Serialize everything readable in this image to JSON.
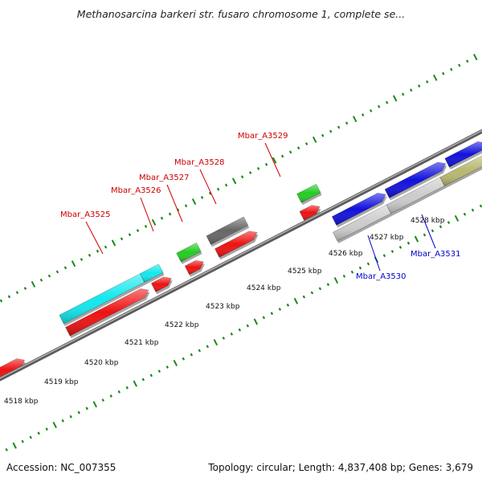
{
  "title": "Methanosarcina barkeri str. fusaro chromosome 1, complete se...",
  "footer": {
    "accession": "Accession: NC_007355",
    "summary": "Topology: circular; Length: 4,837,408 bp; Genes: 3,679"
  },
  "colors": {
    "tick": "#1a8a1a",
    "backbone": "#7a7a7a",
    "forward_label": "#cc0000",
    "reverse_label": "#0000cc",
    "cds": "#ee1111",
    "rna": "#22cc22",
    "cyan": "#11e8ee",
    "blue": "#1111dd",
    "dark_gray": "#666666",
    "light_gray": "#cccccc",
    "olive": "#b8b870"
  },
  "ticks": [
    {
      "label": "4518 kbp"
    },
    {
      "label": "4519 kbp"
    },
    {
      "label": "4520 kbp"
    },
    {
      "label": "4521 kbp"
    },
    {
      "label": "4522 kbp"
    },
    {
      "label": "4523 kbp"
    },
    {
      "label": "4524 kbp"
    },
    {
      "label": "4525 kbp"
    },
    {
      "label": "4526 kbp"
    },
    {
      "label": "4527 kbp"
    },
    {
      "label": "4528 kbp"
    }
  ],
  "gene_labels": [
    {
      "text": "Mbar_A3525",
      "strand": "forward"
    },
    {
      "text": "Mbar_A3526",
      "strand": "forward"
    },
    {
      "text": "Mbar_A3527",
      "strand": "forward"
    },
    {
      "text": "Mbar_A3528",
      "strand": "forward"
    },
    {
      "text": "Mbar_A3529",
      "strand": "forward"
    },
    {
      "text": "Mbar_A3530",
      "strand": "reverse"
    },
    {
      "text": "Mbar_A3531",
      "strand": "reverse"
    }
  ]
}
